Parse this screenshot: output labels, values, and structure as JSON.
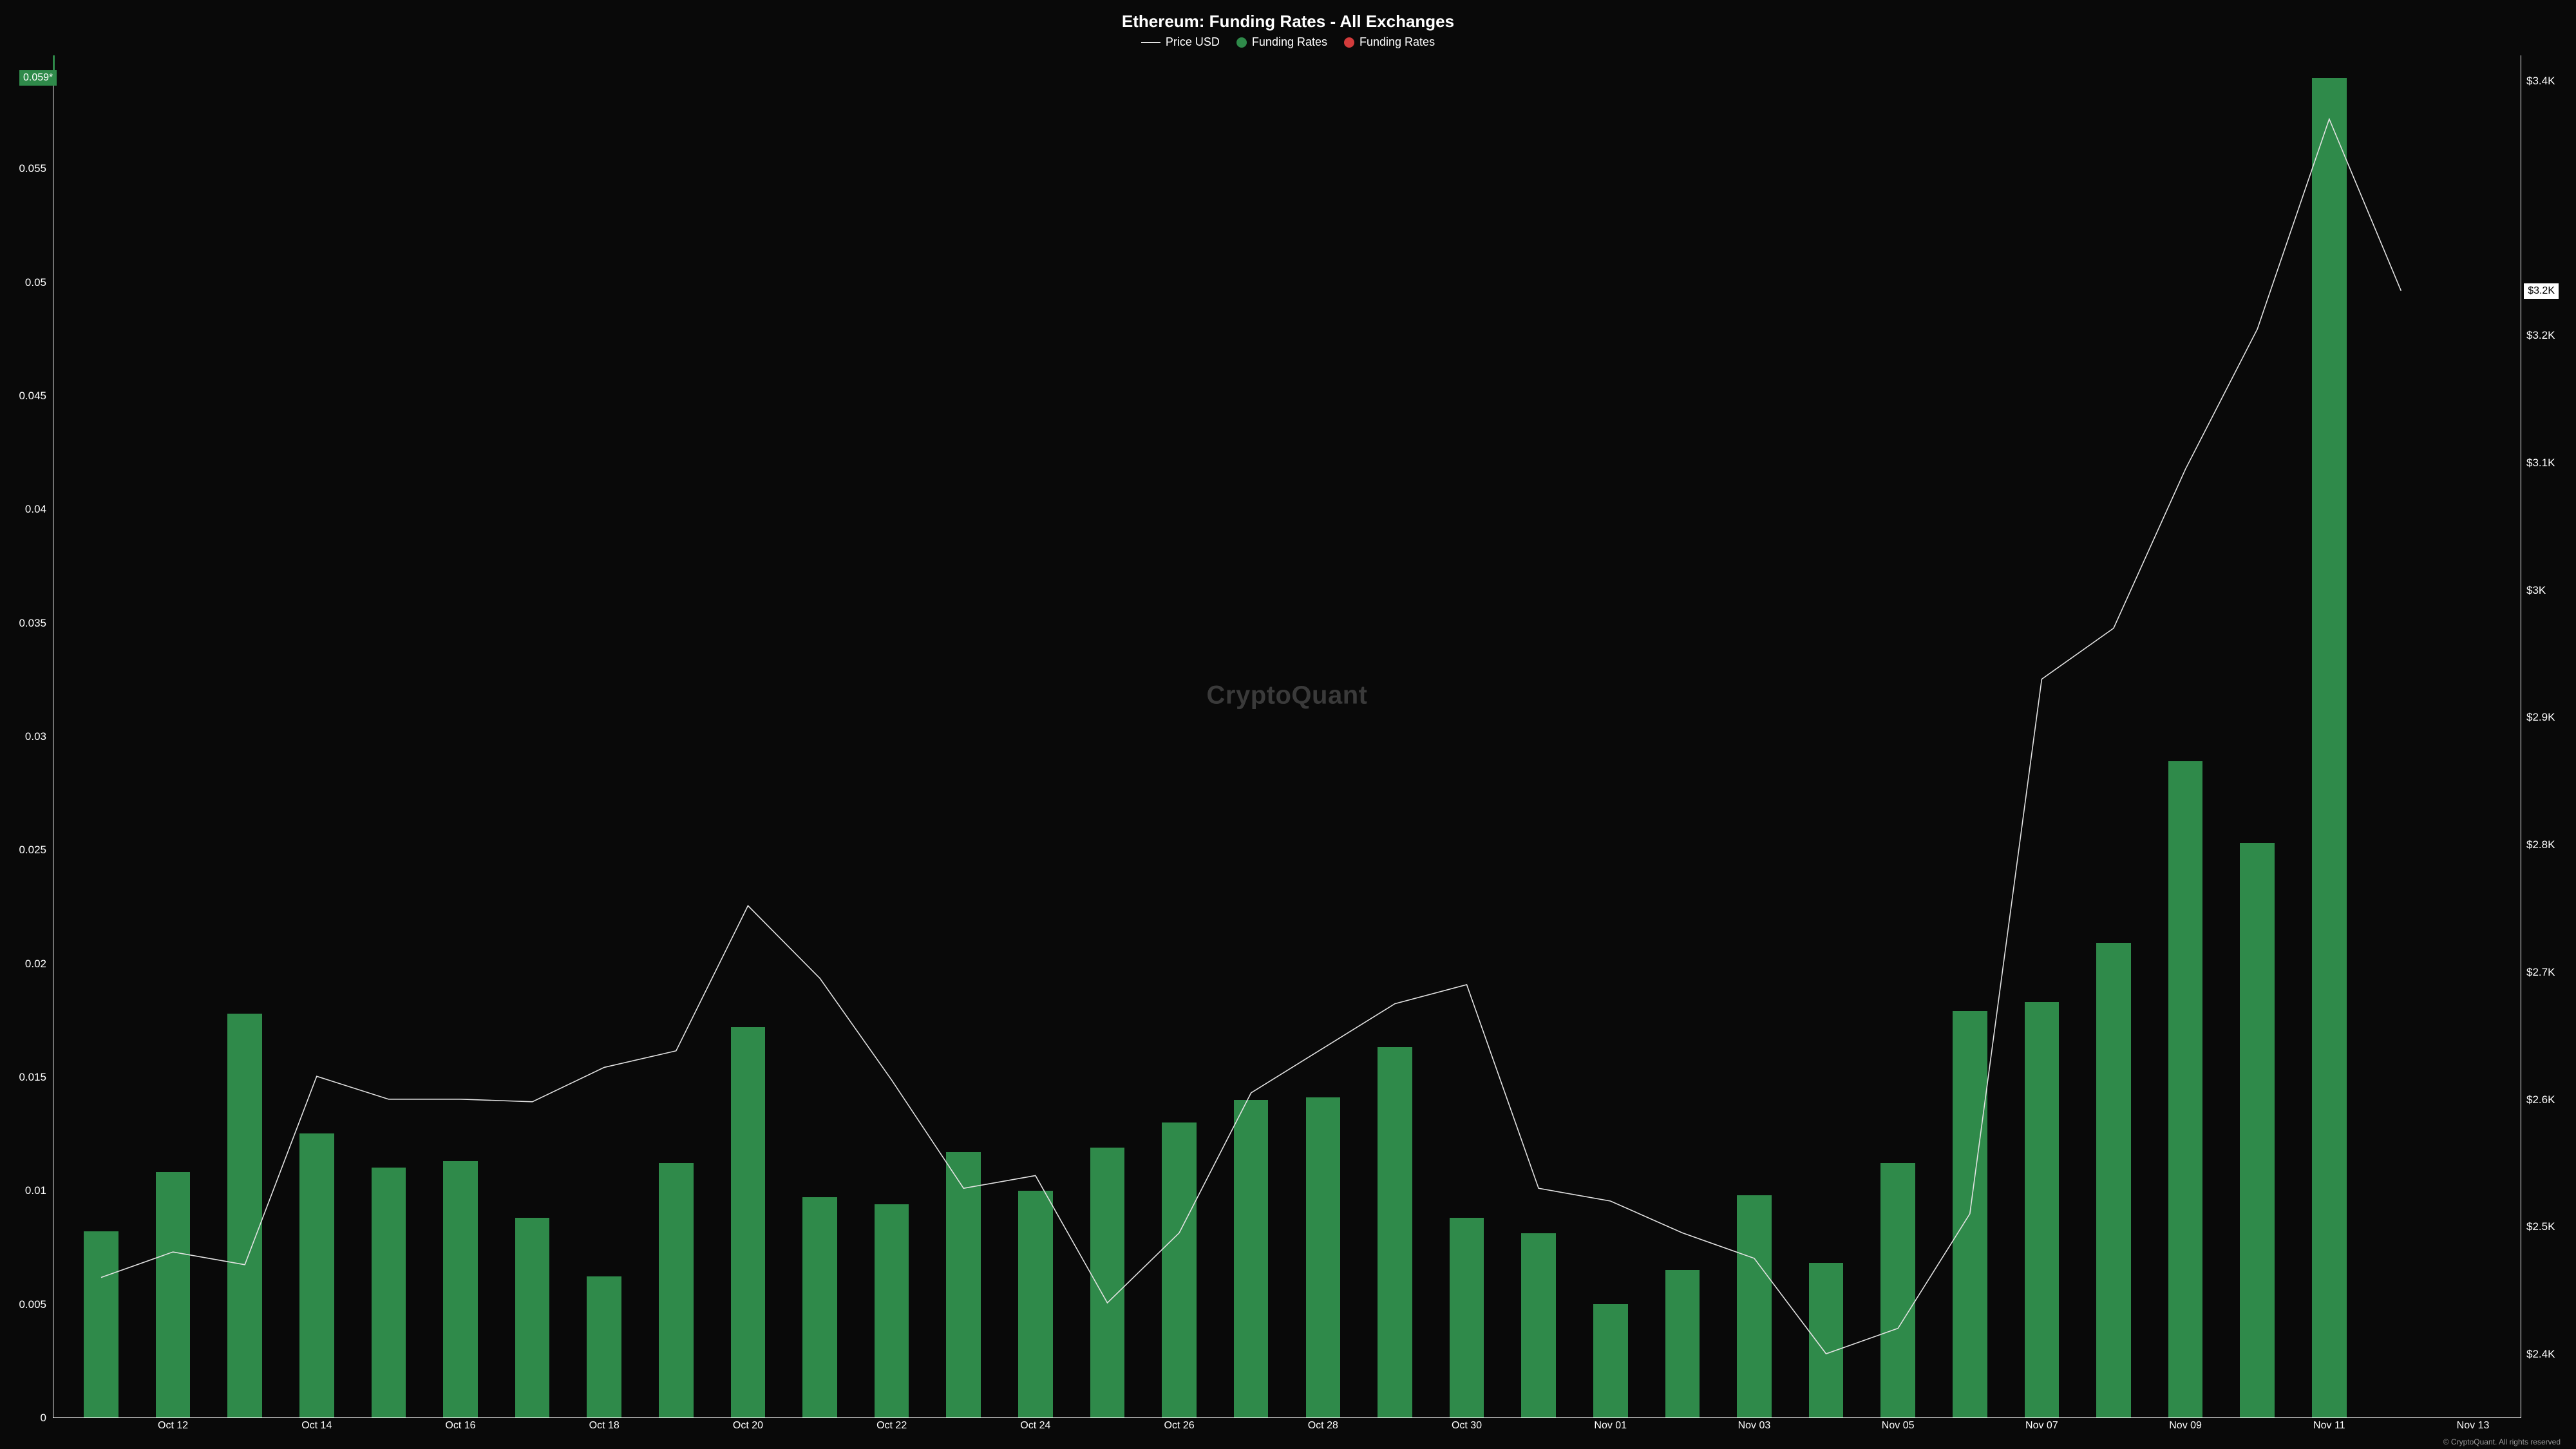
{
  "title": "Ethereum: Funding Rates - All Exchanges",
  "legend": {
    "price": "Price USD",
    "funding_pos": "Funding Rates",
    "funding_neg": "Funding Rates"
  },
  "colors": {
    "background": "#090909",
    "bar": "#2f8a4a",
    "neg": "#d23b3b",
    "line": "#e2e2e2",
    "text": "#ffffff",
    "watermark": "#3a3a3a",
    "axis": "#ffffff"
  },
  "watermark": "CryptoQuant",
  "footer": "© CryptoQuant. All rights reserved",
  "left_axis": {
    "min": 0,
    "max": 0.06,
    "ticks": [
      0,
      0.005,
      0.01,
      0.015,
      0.02,
      0.025,
      0.03,
      0.035,
      0.04,
      0.045,
      0.05,
      0.055
    ],
    "marker_value": 0.059,
    "marker_label": "0.059*"
  },
  "right_axis": {
    "min": 2350,
    "max": 3420,
    "ticks": [
      {
        "v": 2400,
        "label": "$2.4K"
      },
      {
        "v": 2500,
        "label": "$2.5K"
      },
      {
        "v": 2600,
        "label": "$2.6K"
      },
      {
        "v": 2700,
        "label": "$2.7K"
      },
      {
        "v": 2800,
        "label": "$2.8K"
      },
      {
        "v": 2900,
        "label": "$2.9K"
      },
      {
        "v": 3000,
        "label": "$3K"
      },
      {
        "v": 3100,
        "label": "$3.1K"
      },
      {
        "v": 3200,
        "label": "$3.2K"
      },
      {
        "v": 3400,
        "label": "$3.4K"
      }
    ],
    "marker_value": 3235,
    "marker_label": "$3.2K"
  },
  "x_axis": {
    "labels": [
      "Oct 12",
      "Oct 14",
      "Oct 16",
      "Oct 18",
      "Oct 20",
      "Oct 22",
      "Oct 24",
      "Oct 26",
      "Oct 28",
      "Oct 30",
      "Nov 01",
      "Nov 03",
      "Nov 05",
      "Nov 07",
      "Nov 09",
      "Nov 11",
      "Nov 13"
    ],
    "label_indices": [
      1,
      3,
      5,
      7,
      9,
      11,
      13,
      15,
      17,
      19,
      21,
      23,
      25,
      27,
      29,
      31,
      33
    ],
    "n_slots": 34
  },
  "bars": [
    0.0082,
    0.0108,
    0.0178,
    0.0125,
    0.011,
    0.0113,
    0.0088,
    0.0062,
    0.0112,
    0.0172,
    0.0097,
    0.0094,
    0.0117,
    0.01,
    0.0119,
    0.013,
    0.014,
    0.0141,
    0.0163,
    0.0088,
    0.0081,
    0.005,
    0.0065,
    0.0098,
    0.0068,
    0.0112,
    0.0179,
    0.0183,
    0.0209,
    0.0289,
    0.0253,
    0.059
  ],
  "price": [
    2460,
    2480,
    2470,
    2618,
    2600,
    2600,
    2598,
    2625,
    2638,
    2752,
    2695,
    2615,
    2530,
    2540,
    2440,
    2495,
    2605,
    2640,
    2675,
    2690,
    2530,
    2520,
    2495,
    2475,
    2400,
    2420,
    2510,
    2930,
    2970,
    3095,
    3205,
    3370,
    3235
  ],
  "style": {
    "title_fontsize": 26,
    "legend_fontsize": 18,
    "tick_fontsize": 17,
    "xtick_fontsize": 16,
    "watermark_fontsize": 40,
    "line_width": 1.6,
    "bar_width_pct": 48
  }
}
